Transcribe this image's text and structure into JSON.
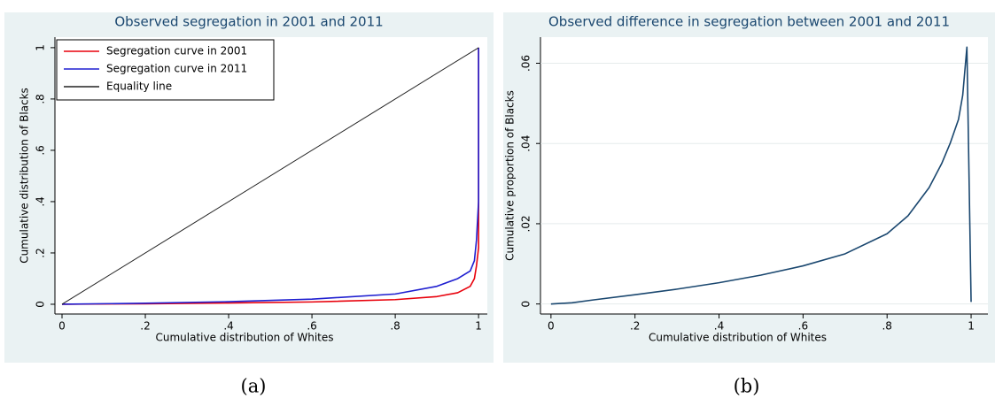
{
  "chart_data": [
    {
      "type": "line",
      "title": "Observed segregation in 2001 and 2011",
      "caption": "(a)",
      "xlabel": "Cumulative distribution of Whites",
      "ylabel": "Cumulative distribution of Blacks",
      "xlim": [
        -0.017,
        1.021
      ],
      "ylim": [
        -0.038,
        1.041
      ],
      "xticks": [
        0,
        {
          "value": 0.2,
          "label": ".2"
        },
        {
          "value": 0.4,
          "label": ".4"
        },
        {
          "value": 0.6,
          "label": ".6"
        },
        {
          "value": 0.8,
          "label": ".8"
        },
        1
      ],
      "yticks": [
        0,
        {
          "value": 0.2,
          "label": ".2"
        },
        {
          "value": 0.4,
          "label": ".4"
        },
        {
          "value": 0.6,
          "label": ".6"
        },
        {
          "value": 0.8,
          "label": ".8"
        },
        1
      ],
      "grid": false,
      "legend": "top-left",
      "series": [
        {
          "name": "Segregation curve in 2001",
          "color": "#e8000b",
          "x": [
            0,
            0.2,
            0.4,
            0.6,
            0.8,
            0.9,
            0.95,
            0.98,
            0.99,
            0.995,
            1,
            1
          ],
          "values": [
            0,
            0.002,
            0.005,
            0.009,
            0.018,
            0.03,
            0.045,
            0.07,
            0.1,
            0.15,
            0.22,
            1
          ]
        },
        {
          "name": "Segregation curve in 2011",
          "color": "#1f1fd0",
          "x": [
            0,
            0.2,
            0.4,
            0.6,
            0.8,
            0.9,
            0.95,
            0.98,
            0.99,
            0.995,
            1,
            1
          ],
          "values": [
            0,
            0.004,
            0.01,
            0.02,
            0.04,
            0.07,
            0.1,
            0.13,
            0.17,
            0.25,
            0.4,
            1
          ]
        },
        {
          "name": "Equality line",
          "color": "#222222",
          "x": [
            0,
            1
          ],
          "values": [
            0,
            1
          ]
        }
      ]
    },
    {
      "type": "line",
      "title": "Observed difference in segregation between 2001 and 2011",
      "caption": "(b)",
      "xlabel": "Cumulative distribution of Whites",
      "ylabel": "Cumulative proportion of Blacks",
      "xlim": [
        -0.025,
        1.04
      ],
      "ylim": [
        -0.0025,
        0.0665
      ],
      "xticks": [
        0,
        {
          "value": 0.2,
          "label": ".2"
        },
        {
          "value": 0.4,
          "label": ".4"
        },
        {
          "value": 0.6,
          "label": ".6"
        },
        {
          "value": 0.8,
          "label": ".8"
        },
        1
      ],
      "yticks": [
        0,
        {
          "value": 0.02,
          "label": ".02"
        },
        {
          "value": 0.04,
          "label": ".04"
        },
        {
          "value": 0.06,
          "label": ".06"
        }
      ],
      "grid": true,
      "series": [
        {
          "color": "#1a476f",
          "x": [
            0,
            0.05,
            0.1,
            0.2,
            0.3,
            0.4,
            0.5,
            0.6,
            0.7,
            0.8,
            0.85,
            0.9,
            0.93,
            0.95,
            0.97,
            0.98,
            0.99,
            1
          ],
          "values": [
            0,
            0.0003,
            0.001,
            0.0023,
            0.0037,
            0.0053,
            0.0072,
            0.0095,
            0.0125,
            0.0175,
            0.022,
            0.029,
            0.035,
            0.04,
            0.046,
            0.052,
            0.064,
            0.0005
          ]
        }
      ]
    }
  ]
}
